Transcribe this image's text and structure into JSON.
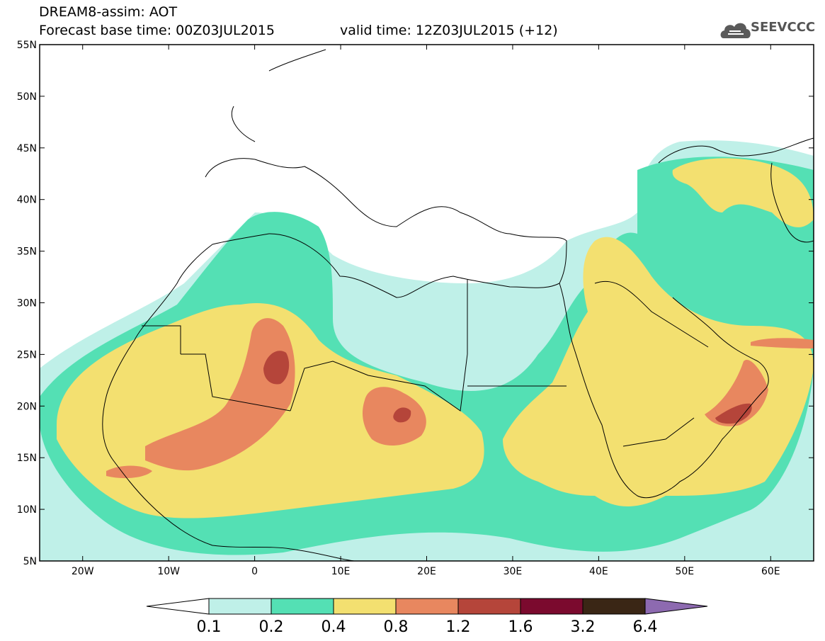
{
  "header": {
    "title": "DREAM8-assim: AOT",
    "base_time": "Forecast base time: 00Z03JUL2015",
    "valid_time": "valid time: 12Z03JUL2015 (+12)",
    "logo_text": "SEEVCCC"
  },
  "map": {
    "projection": "lat-lon",
    "lon_range": [
      -25,
      65
    ],
    "lat_range": [
      5,
      55
    ],
    "y_ticks": [
      "5N",
      "10N",
      "15N",
      "20N",
      "25N",
      "30N",
      "35N",
      "40N",
      "45N",
      "50N",
      "55N"
    ],
    "x_ticks": [
      "20W",
      "10W",
      "0",
      "10E",
      "20E",
      "30E",
      "40E",
      "50E",
      "60E"
    ],
    "colors": {
      "frame": "#000000",
      "background": "#ffffff",
      "borders": "#000000"
    }
  },
  "legend": {
    "levels": [
      "0.1",
      "0.2",
      "0.4",
      "0.8",
      "1.2",
      "1.6",
      "3.2",
      "6.4"
    ],
    "colors": [
      "#bff0e8",
      "#54e0b4",
      "#f3e070",
      "#e8875f",
      "#b5453a",
      "#7b0a2e",
      "#3a2615",
      "#8d6ab0"
    ],
    "below_color": "#ffffff"
  }
}
